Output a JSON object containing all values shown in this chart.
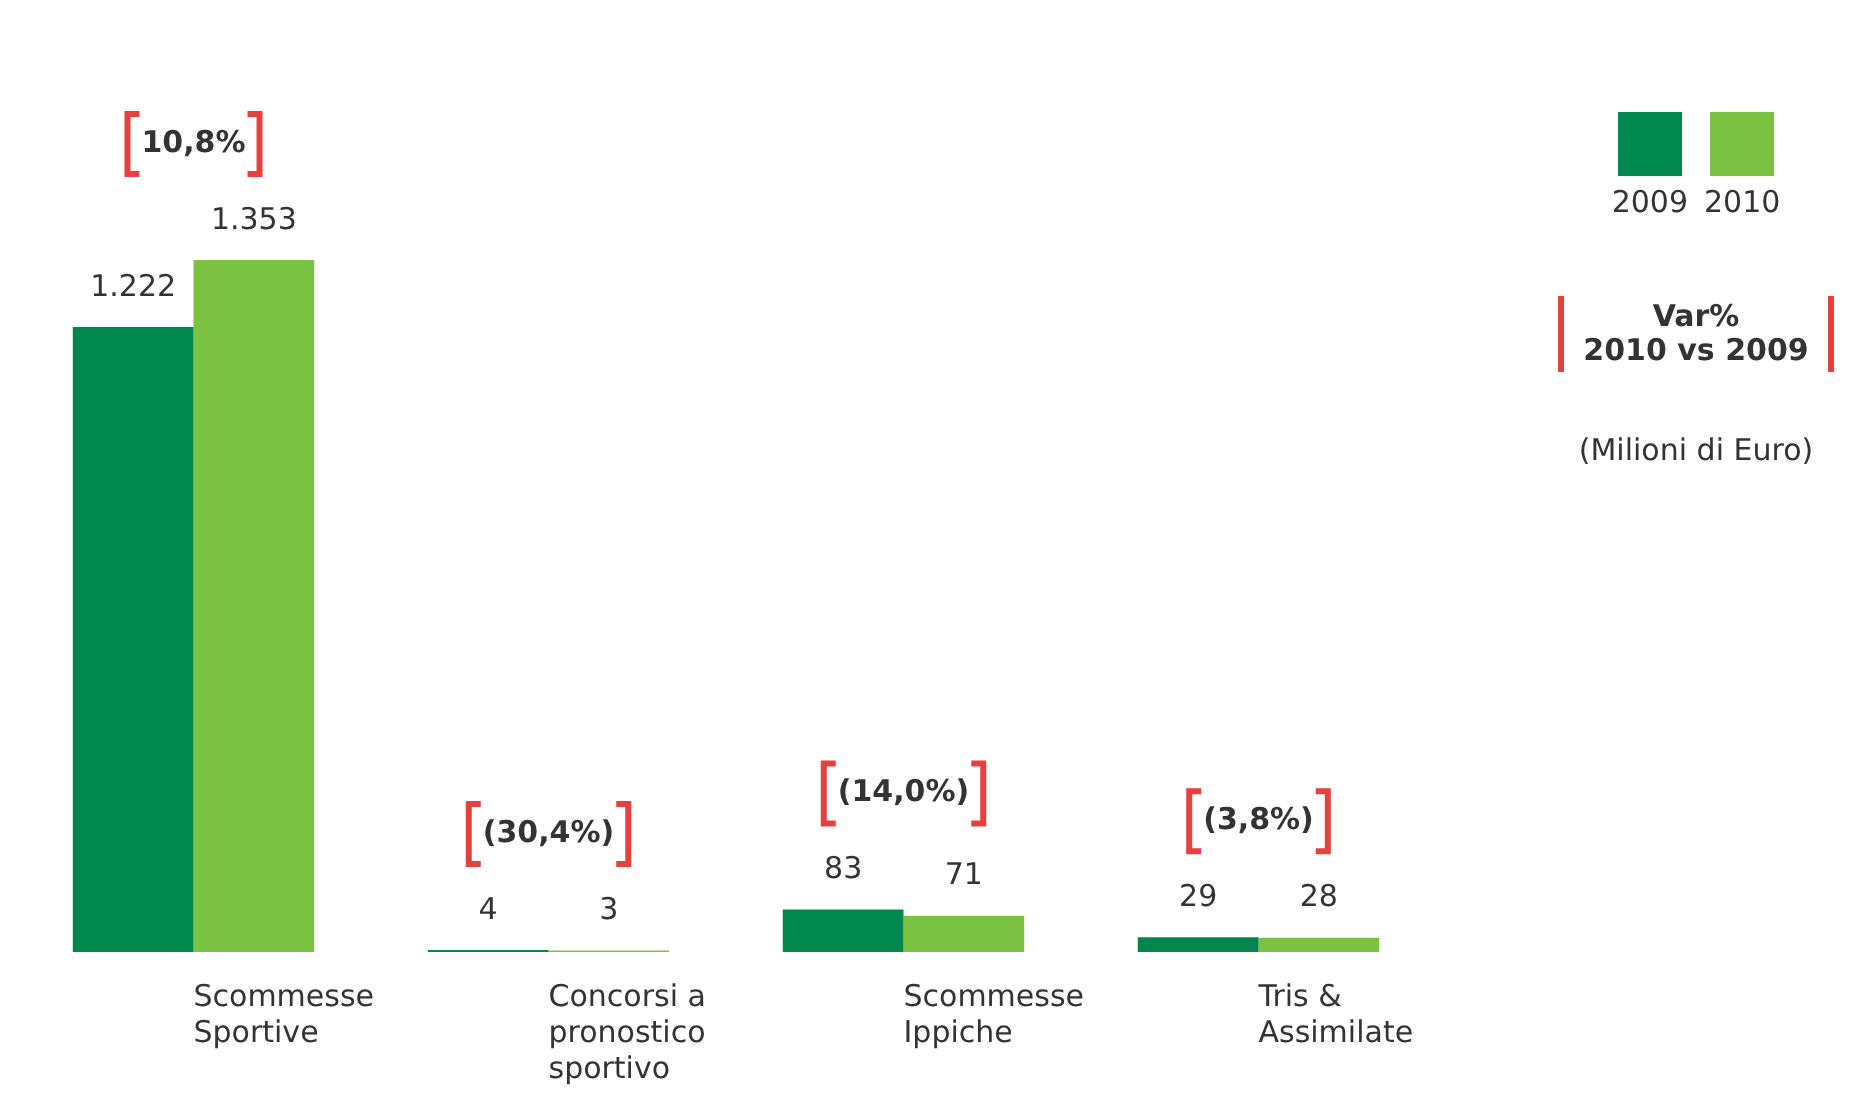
{
  "chart_data": {
    "type": "bar",
    "categories": [
      "Scommesse Sportive",
      "Concorsi a pronostico sportivo",
      "Scommesse Ippiche",
      "Tris & Assimilate"
    ],
    "series": [
      {
        "name": "2009",
        "color": "#00874f",
        "values": [
          1222,
          4,
          83,
          29
        ],
        "value_labels": [
          "1.222",
          "4",
          "83",
          "29"
        ]
      },
      {
        "name": "2010",
        "color": "#7cc242",
        "values": [
          1353,
          3,
          71,
          28
        ],
        "value_labels": [
          "1.353",
          "3",
          "71",
          "28"
        ]
      }
    ],
    "legend": "top right",
    "annotations": [
      "10,8%",
      "(30,4%)",
      "(14,0%)",
      "(3,8%)",
      "Var%\n2010 vs 2009",
      "(Milioni di Euro)"
    ]
  }
}
